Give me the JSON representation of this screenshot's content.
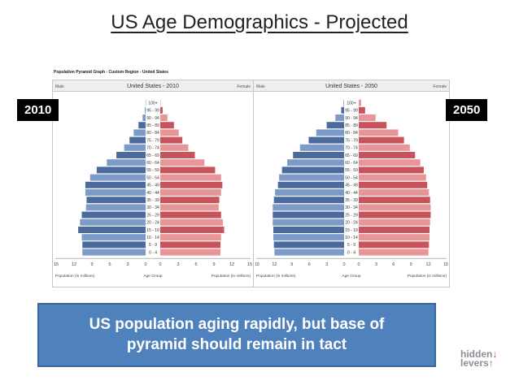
{
  "slide": {
    "title": "US Age Demographics - Projected",
    "figure_header": "Population Pyramid Graph - Custom Region - United States",
    "badge_left": "2010",
    "badge_right": "2050",
    "callout": "US population aging rapidly, but base of pyramid should remain in tact",
    "brand": {
      "line1": "hidden",
      "line2": "levers"
    }
  },
  "colors": {
    "male": "#4a6b9c",
    "male_alt": "#7d9bc8",
    "female": "#c9535b",
    "female_alt": "#e89598"
  },
  "chart_data": [
    {
      "type": "bar",
      "title": "United States - 2010",
      "left_label": "Male",
      "right_label": "Female",
      "xlabel_left": "Population (in millions)",
      "xlabel_center": "Age Group",
      "xlabel_right": "Population (in millions)",
      "xlim": [
        0,
        15
      ],
      "xticks": [
        "15",
        "12",
        "9",
        "6",
        "3",
        "0",
        "0",
        "3",
        "6",
        "9",
        "12",
        "15"
      ],
      "categories": [
        "100+",
        "95 - 99",
        "90 - 94",
        "85 - 89",
        "80 - 84",
        "75 - 79",
        "70 - 74",
        "65 - 69",
        "60 - 64",
        "55 - 59",
        "50 - 54",
        "45 - 49",
        "40 - 44",
        "35 - 39",
        "30 - 34",
        "25 - 29",
        "20 - 24",
        "15 - 19",
        "10 - 14",
        "5 - 9",
        "0 - 4"
      ],
      "series": [
        {
          "name": "Male",
          "values": [
            0.02,
            0.1,
            0.5,
            1.2,
            2.0,
            2.7,
            3.6,
            4.9,
            6.5,
            8.2,
            9.3,
            10.1,
            10.1,
            9.9,
            10.0,
            10.7,
            11.0,
            11.3,
            10.7,
            10.6,
            10.6
          ]
        },
        {
          "name": "Female",
          "values": [
            0.06,
            0.4,
            1.2,
            2.3,
            3.1,
            3.7,
            4.7,
            5.8,
            7.4,
            9.2,
            10.2,
            10.4,
            10.2,
            9.9,
            9.8,
            10.2,
            10.5,
            10.7,
            10.2,
            10.1,
            10.1
          ]
        }
      ]
    },
    {
      "type": "bar",
      "title": "United States - 2050",
      "left_label": "Male",
      "right_label": "Female",
      "xlabel_left": "Population (in millions)",
      "xlabel_center": "Age Group",
      "xlabel_right": "Population (in millions)",
      "xlim": [
        0,
        15
      ],
      "xticks": [
        "15",
        "12",
        "9",
        "6",
        "3",
        "0",
        "0",
        "3",
        "6",
        "9",
        "12",
        "15"
      ],
      "categories": [
        "100+",
        "95 - 99",
        "90 - 94",
        "85 - 89",
        "80 - 84",
        "75 - 79",
        "70 - 74",
        "65 - 69",
        "60 - 64",
        "55 - 59",
        "50 - 54",
        "45 - 49",
        "40 - 44",
        "35 - 39",
        "30 - 34",
        "25 - 29",
        "20 - 24",
        "15 - 19",
        "10 - 14",
        "5 - 9",
        "0 - 4"
      ],
      "series": [
        {
          "name": "Male",
          "values": [
            0.1,
            0.5,
            1.5,
            3.0,
            4.8,
            6.1,
            7.6,
            8.8,
            9.8,
            10.7,
            11.2,
            11.4,
            11.9,
            12.1,
            12.3,
            12.3,
            12.3,
            12.2,
            12.2,
            12.1,
            12.0
          ]
        },
        {
          "name": "Female",
          "values": [
            0.4,
            1.1,
            2.9,
            4.8,
            6.8,
            7.8,
            8.8,
            9.7,
            10.6,
            11.2,
            11.6,
            11.8,
            12.1,
            12.3,
            12.4,
            12.4,
            12.3,
            12.2,
            12.2,
            12.1,
            12.0
          ]
        }
      ]
    }
  ]
}
